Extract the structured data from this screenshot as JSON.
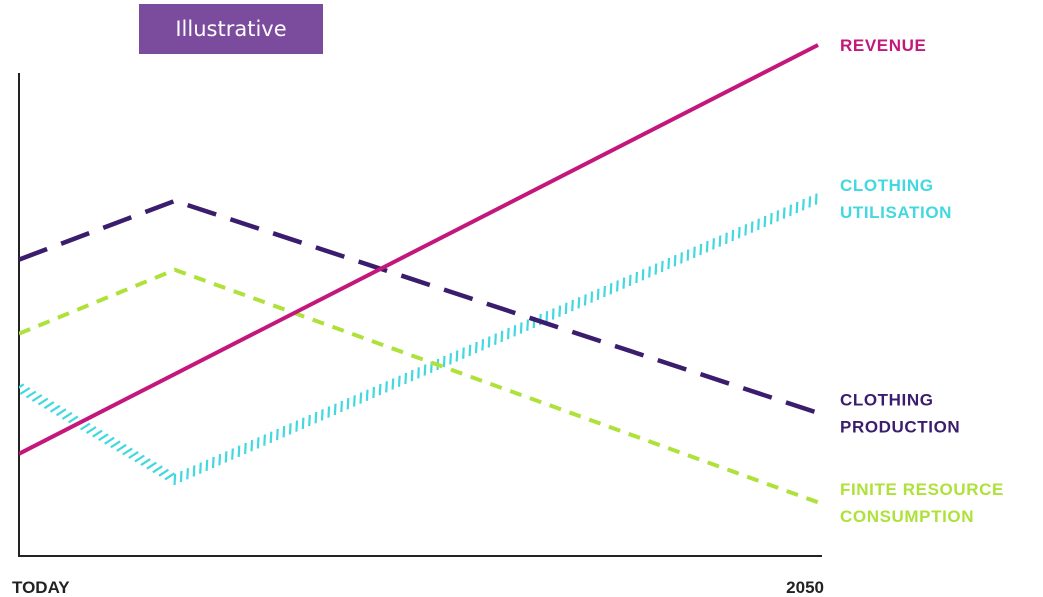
{
  "badge": {
    "label": "Illustrative",
    "color": "#7b4b9e"
  },
  "chart_data": {
    "type": "line",
    "title": "",
    "xlabel": "",
    "ylabel": "",
    "x_ticks": [
      "TODAY",
      "2050"
    ],
    "x_domain": [
      0,
      100
    ],
    "ylim": [
      0,
      100
    ],
    "grid": false,
    "legend_placement": "right, next to line ends",
    "series": [
      {
        "name": "REVENUE",
        "label_lines": [
          "REVENUE"
        ],
        "color": "#c4177c",
        "style": "solid",
        "x": [
          0,
          100
        ],
        "y": [
          20,
          100
        ]
      },
      {
        "name": "CLOTHING UTILISATION",
        "label_lines": [
          "CLOTHING",
          "UTILISATION"
        ],
        "color": "#41d8df",
        "style": "hatched",
        "x": [
          0,
          19.5,
          100
        ],
        "y": [
          33,
          15,
          70
        ]
      },
      {
        "name": "CLOTHING PRODUCTION",
        "label_lines": [
          "CLOTHING",
          "PRODUCTION"
        ],
        "color": "#3b1d6e",
        "style": "long-dash",
        "x": [
          0,
          19.5,
          100
        ],
        "y": [
          58,
          69.5,
          28
        ]
      },
      {
        "name": "FINITE RESOURCE CONSUMPTION",
        "label_lines": [
          "FINITE RESOURCE",
          "CONSUMPTION"
        ],
        "color": "#aee13a",
        "style": "short-dash",
        "x": [
          0,
          19.5,
          100
        ],
        "y": [
          43.5,
          56,
          10.5
        ]
      }
    ]
  }
}
